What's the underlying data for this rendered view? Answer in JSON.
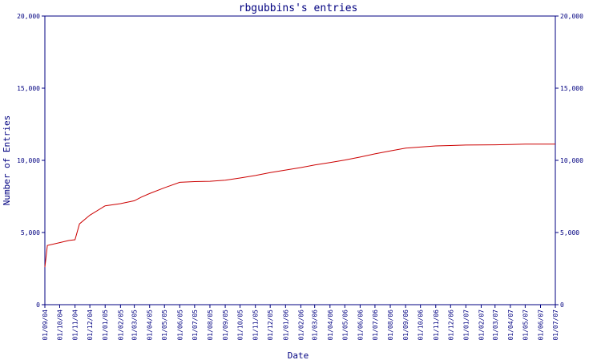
{
  "chart_data": {
    "type": "line",
    "title": "rbgubbins's entries",
    "xlabel": "Date",
    "ylabel": "Number of Entries",
    "ylim": [
      0,
      20000
    ],
    "y_ticks": [
      0,
      5000,
      10000,
      15000,
      20000
    ],
    "y_tick_labels": [
      "0",
      "5,000",
      "10,000",
      "15,000",
      "20,000"
    ],
    "right_axis": true,
    "grid": false,
    "x_ticks": [
      "01/09/04",
      "01/10/04",
      "01/11/04",
      "01/12/04",
      "01/01/05",
      "01/02/05",
      "01/03/05",
      "01/04/05",
      "01/05/05",
      "01/06/05",
      "01/07/05",
      "01/08/05",
      "01/09/05",
      "01/10/05",
      "01/11/05",
      "01/12/05",
      "01/01/06",
      "01/02/06",
      "01/03/06",
      "01/04/06",
      "01/05/06",
      "01/06/06",
      "01/07/06",
      "01/08/06",
      "01/09/06",
      "01/10/06",
      "01/11/06",
      "01/12/06",
      "01/01/07",
      "01/02/07",
      "01/03/07",
      "01/04/07",
      "01/05/07",
      "01/06/07",
      "01/07/07"
    ],
    "colors": {
      "line": "#cc0000",
      "axis": "#000080",
      "text": "#000080"
    },
    "series": [
      {
        "points": [
          [
            "01/09/04",
            2600
          ],
          [
            "06/09/04",
            4100
          ],
          [
            "01/10/04",
            4300
          ],
          [
            "20/10/04",
            4450
          ],
          [
            "01/11/04",
            4500
          ],
          [
            "10/11/04",
            5600
          ],
          [
            "01/12/04",
            6200
          ],
          [
            "01/01/05",
            6850
          ],
          [
            "01/02/05",
            7000
          ],
          [
            "01/03/05",
            7200
          ],
          [
            "15/03/05",
            7450
          ],
          [
            "01/04/05",
            7700
          ],
          [
            "01/05/05",
            8100
          ],
          [
            "01/06/05",
            8480
          ],
          [
            "01/07/05",
            8530
          ],
          [
            "01/08/05",
            8550
          ],
          [
            "01/09/05",
            8620
          ],
          [
            "01/10/05",
            8780
          ],
          [
            "01/11/05",
            8950
          ],
          [
            "01/12/05",
            9150
          ],
          [
            "01/01/06",
            9330
          ],
          [
            "01/02/06",
            9500
          ],
          [
            "01/03/06",
            9680
          ],
          [
            "01/04/06",
            9850
          ],
          [
            "01/05/06",
            10020
          ],
          [
            "01/06/06",
            10230
          ],
          [
            "01/07/06",
            10450
          ],
          [
            "01/08/06",
            10650
          ],
          [
            "01/09/06",
            10850
          ],
          [
            "01/10/06",
            10920
          ],
          [
            "01/11/06",
            11000
          ],
          [
            "01/12/06",
            11030
          ],
          [
            "01/01/07",
            11060
          ],
          [
            "01/02/07",
            11070
          ],
          [
            "01/03/07",
            11080
          ],
          [
            "01/04/07",
            11100
          ],
          [
            "01/05/07",
            11120
          ],
          [
            "01/06/07",
            11130
          ],
          [
            "01/07/07",
            11130
          ]
        ]
      }
    ]
  }
}
